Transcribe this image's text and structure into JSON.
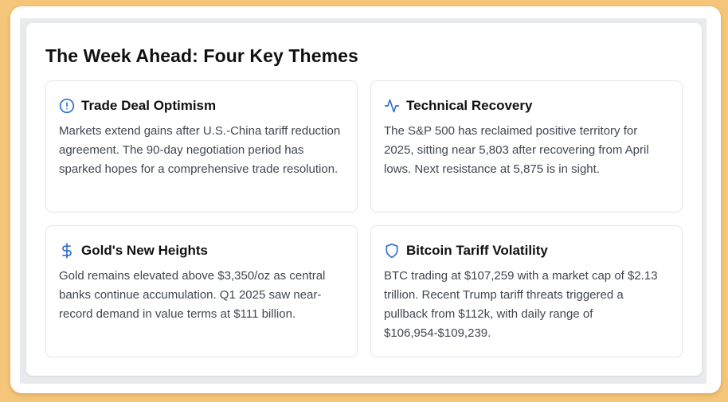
{
  "heading": "The Week Ahead: Four Key Themes",
  "colors": {
    "accent": "#2f6fd6",
    "page_background": "#f5c67a",
    "title_text": "#111111",
    "body_text": "#404652"
  },
  "themes": [
    {
      "icon": "alert-circle-icon",
      "title": "Trade Deal Optimism",
      "body": "Markets extend gains after U.S.-China tariff reduction agreement. The 90-day negotiation period has sparked hopes for a comprehensive trade resolution."
    },
    {
      "icon": "activity-pulse-icon",
      "title": "Technical Recovery",
      "body": "The S&P 500 has reclaimed positive territory for 2025, sitting near 5,803 after recovering from April lows. Next resistance at 5,875 is in sight."
    },
    {
      "icon": "dollar-sign-icon",
      "title": "Gold's New Heights",
      "body": "Gold remains elevated above $3,350/oz as central banks continue accumulation. Q1 2025 saw near-record demand in value terms at $111 billion."
    },
    {
      "icon": "shield-icon",
      "title": "Bitcoin Tariff Volatility",
      "body": "BTC trading at $107,259 with a market cap of $2.13 trillion. Recent Trump tariff threats triggered a pullback from $112k, with daily range of $106,954-$109,239."
    }
  ]
}
